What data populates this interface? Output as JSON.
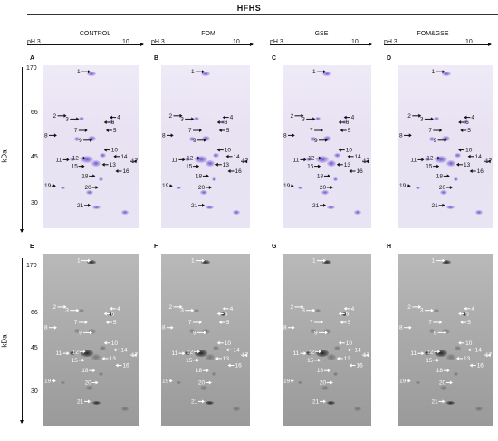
{
  "title": "HFHS",
  "conditions": [
    "CONTROL",
    "FOM",
    "GSE",
    "FOM&GSE"
  ],
  "ph_axis": {
    "start": "pH 3",
    "end": "10"
  },
  "y_axis_label": "kDa",
  "mw_markers": [
    "170",
    "66",
    "45",
    "30"
  ],
  "panels_top": [
    "A",
    "B",
    "C",
    "D"
  ],
  "panels_bottom": [
    "E",
    "F",
    "G",
    "H"
  ],
  "spot_labels": [
    "1",
    "2",
    "3",
    "4",
    "5",
    "6",
    "7",
    "8",
    "9",
    "10",
    "11",
    "12",
    "13",
    "14",
    "15",
    "16",
    "17",
    "18",
    "19",
    "20",
    "21"
  ],
  "colors": {
    "stain": "#6a4fc8",
    "arrow_top": "#111111",
    "arrow_bottom": "#ffffff"
  }
}
